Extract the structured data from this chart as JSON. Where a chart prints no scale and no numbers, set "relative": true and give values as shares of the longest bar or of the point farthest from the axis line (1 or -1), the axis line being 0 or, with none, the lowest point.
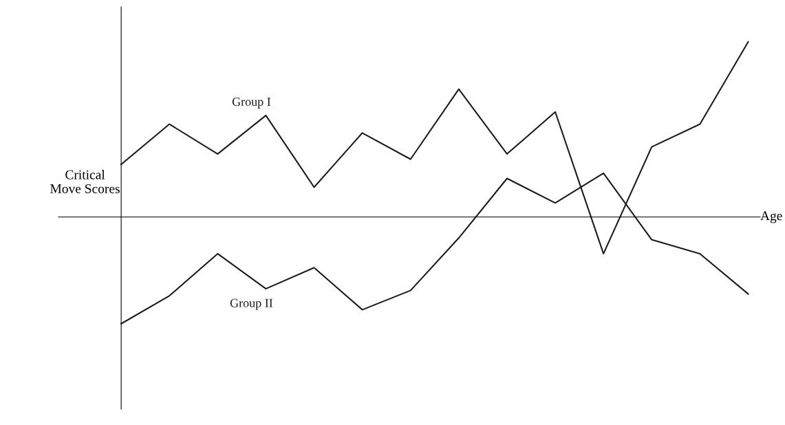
{
  "chart_data": {
    "type": "line",
    "relative": true,
    "xlabel": "Age",
    "ylabel": "Critical\nMove Scores",
    "categories": [
      null,
      null,
      null,
      null,
      null,
      null,
      null,
      null,
      null,
      null,
      null,
      null,
      null,
      null
    ],
    "series": [
      {
        "name": "Group I",
        "color": "#1a1a1a",
        "values": [
          0.3,
          0.53,
          0.36,
          0.58,
          0.17,
          0.48,
          0.33,
          0.73,
          0.36,
          0.6,
          -0.21,
          0.4,
          0.53,
          1.0
        ]
      },
      {
        "name": "Group II",
        "color": "#1a1a1a",
        "values": [
          -0.61,
          -0.45,
          -0.21,
          -0.41,
          -0.29,
          -0.53,
          -0.42,
          -0.12,
          0.22,
          0.08,
          0.25,
          -0.13,
          -0.21,
          -0.44
        ]
      }
    ],
    "marker": "none",
    "line_style": "solid",
    "grid": false,
    "legend": false
  }
}
